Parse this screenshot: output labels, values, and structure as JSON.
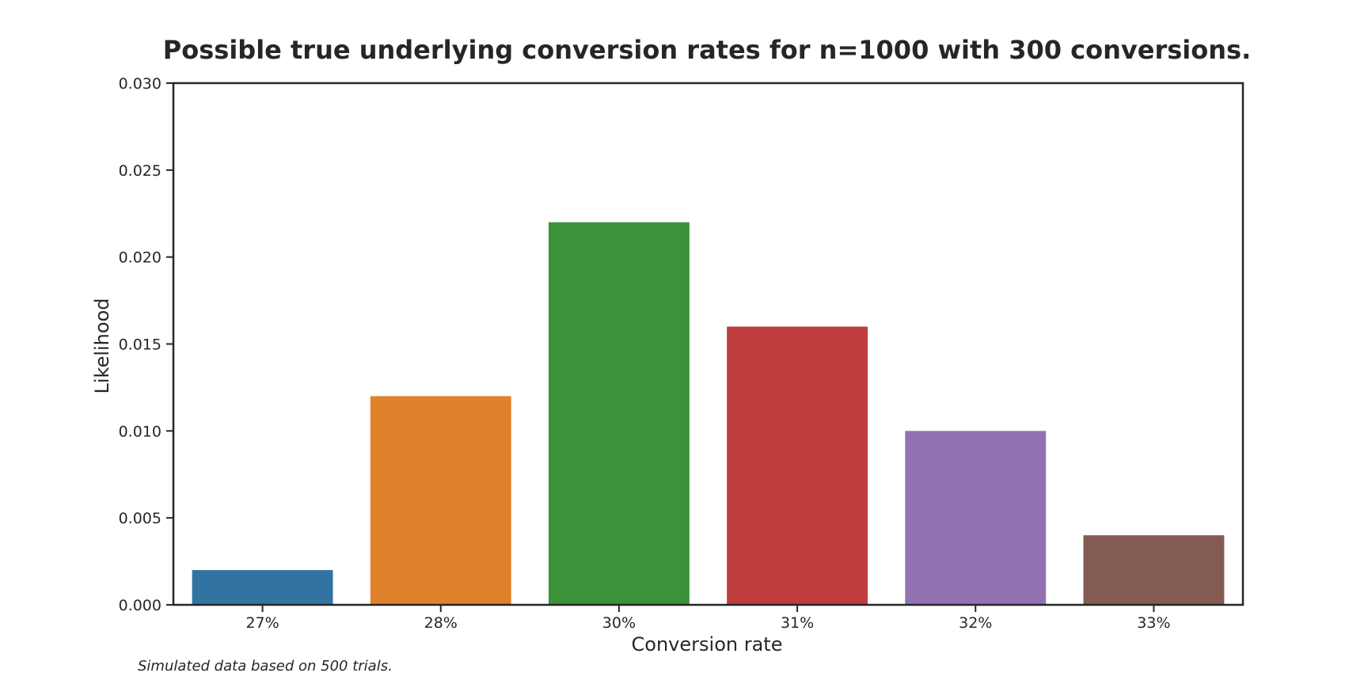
{
  "chart_data": {
    "type": "bar",
    "title": "Possible true underlying conversion rates for n=1000 with 300 conversions.",
    "xlabel": "Conversion rate",
    "ylabel": "Likelihood",
    "categories": [
      "27%",
      "28%",
      "30%",
      "31%",
      "32%",
      "33%"
    ],
    "values": [
      0.002,
      0.012,
      0.022,
      0.016,
      0.01,
      0.004
    ],
    "colors": [
      "#3274a1",
      "#e1812c",
      "#3a923a",
      "#c03d3e",
      "#9372b2",
      "#845b53"
    ],
    "ylim": [
      0,
      0.03
    ],
    "yticks": [
      "0.000",
      "0.005",
      "0.010",
      "0.015",
      "0.020",
      "0.025",
      "0.030"
    ],
    "grid": false,
    "legend": "none"
  },
  "footnote": "Simulated data based on 500 trials."
}
